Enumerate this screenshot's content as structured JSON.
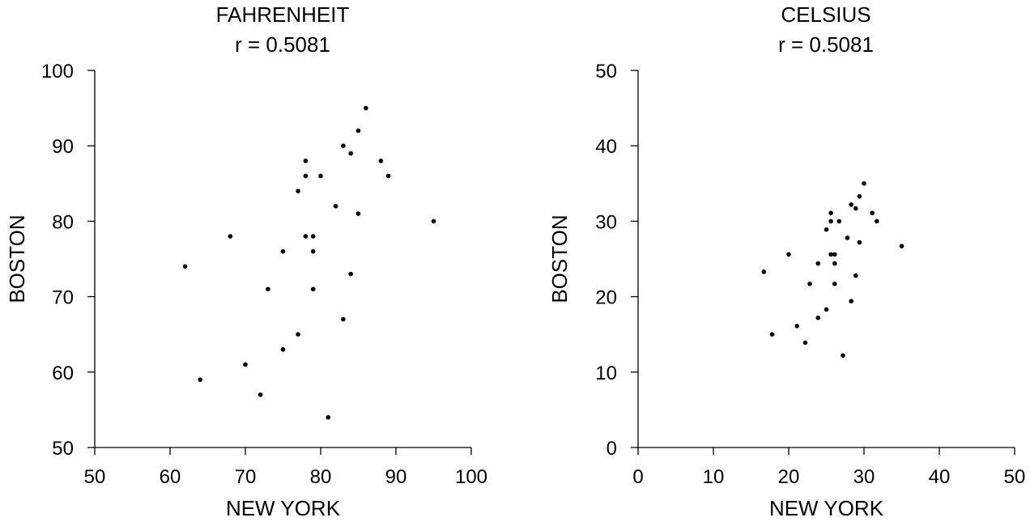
{
  "chart_data": [
    {
      "type": "scatter",
      "title": "FAHRENHEIT",
      "subtitle": "r = 0.5081",
      "xlabel": "NEW YORK",
      "ylabel": "BOSTON",
      "xlim": [
        50,
        100
      ],
      "ylim": [
        50,
        100
      ],
      "xticks": [
        "50",
        "60",
        "70",
        "80",
        "90",
        "100"
      ],
      "yticks": [
        "50",
        "60",
        "70",
        "80",
        "90",
        "100"
      ],
      "grid": false,
      "legend": "none",
      "point_color": "#000000",
      "points": [
        {
          "x": 62,
          "y": 74
        },
        {
          "x": 64,
          "y": 59
        },
        {
          "x": 68,
          "y": 78
        },
        {
          "x": 70,
          "y": 61
        },
        {
          "x": 72,
          "y": 57
        },
        {
          "x": 73,
          "y": 71
        },
        {
          "x": 75,
          "y": 76
        },
        {
          "x": 75,
          "y": 63
        },
        {
          "x": 77,
          "y": 84
        },
        {
          "x": 77,
          "y": 65
        },
        {
          "x": 78,
          "y": 88
        },
        {
          "x": 78,
          "y": 86
        },
        {
          "x": 78,
          "y": 78
        },
        {
          "x": 79,
          "y": 78
        },
        {
          "x": 79,
          "y": 76
        },
        {
          "x": 79,
          "y": 71
        },
        {
          "x": 80,
          "y": 86
        },
        {
          "x": 81,
          "y": 54
        },
        {
          "x": 82,
          "y": 82
        },
        {
          "x": 83,
          "y": 90
        },
        {
          "x": 83,
          "y": 67
        },
        {
          "x": 84,
          "y": 89
        },
        {
          "x": 84,
          "y": 73
        },
        {
          "x": 85,
          "y": 92
        },
        {
          "x": 85,
          "y": 81
        },
        {
          "x": 86,
          "y": 95
        },
        {
          "x": 88,
          "y": 88
        },
        {
          "x": 89,
          "y": 86
        },
        {
          "x": 95,
          "y": 80
        }
      ]
    },
    {
      "type": "scatter",
      "title": "CELSIUS",
      "subtitle": "r = 0.5081",
      "xlabel": "NEW YORK",
      "ylabel": "BOSTON",
      "xlim": [
        0,
        50
      ],
      "ylim": [
        0,
        50
      ],
      "xticks": [
        "0",
        "10",
        "20",
        "30",
        "40",
        "50"
      ],
      "yticks": [
        "0",
        "10",
        "20",
        "30",
        "40",
        "50"
      ],
      "grid": false,
      "legend": "none",
      "point_color": "#000000",
      "points": [
        {
          "x": 16.7,
          "y": 23.3
        },
        {
          "x": 17.8,
          "y": 15.0
        },
        {
          "x": 20.0,
          "y": 25.6
        },
        {
          "x": 21.1,
          "y": 16.1
        },
        {
          "x": 22.2,
          "y": 13.9
        },
        {
          "x": 22.8,
          "y": 21.7
        },
        {
          "x": 23.9,
          "y": 24.4
        },
        {
          "x": 23.9,
          "y": 17.2
        },
        {
          "x": 25.0,
          "y": 28.9
        },
        {
          "x": 25.0,
          "y": 18.3
        },
        {
          "x": 25.6,
          "y": 31.1
        },
        {
          "x": 25.6,
          "y": 30.0
        },
        {
          "x": 25.6,
          "y": 25.6
        },
        {
          "x": 26.1,
          "y": 25.6
        },
        {
          "x": 26.1,
          "y": 24.4
        },
        {
          "x": 26.1,
          "y": 21.7
        },
        {
          "x": 26.7,
          "y": 30.0
        },
        {
          "x": 27.2,
          "y": 12.2
        },
        {
          "x": 27.8,
          "y": 27.8
        },
        {
          "x": 28.3,
          "y": 32.2
        },
        {
          "x": 28.3,
          "y": 19.4
        },
        {
          "x": 28.9,
          "y": 31.7
        },
        {
          "x": 28.9,
          "y": 22.8
        },
        {
          "x": 29.4,
          "y": 33.3
        },
        {
          "x": 29.4,
          "y": 27.2
        },
        {
          "x": 30.0,
          "y": 35.0
        },
        {
          "x": 31.1,
          "y": 31.1
        },
        {
          "x": 31.7,
          "y": 30.0
        },
        {
          "x": 35.0,
          "y": 26.7
        }
      ]
    }
  ]
}
